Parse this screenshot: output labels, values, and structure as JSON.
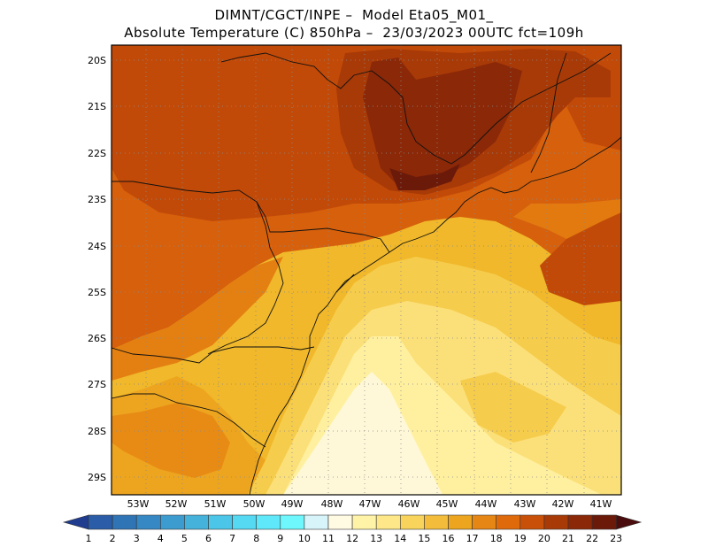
{
  "title": {
    "line1": "DIMNT/CGCT/INPE –  Model Eta05_M01_",
    "line2": "Absolute Temperature (C) 850hPa –  23/03/2023 00UTC fct=109h"
  },
  "map": {
    "variable": "Absolute Temperature",
    "units": "C",
    "level": "850hPa",
    "lat_labels": [
      "20S",
      "21S",
      "22S",
      "23S",
      "24S",
      "25S",
      "26S",
      "27S",
      "28S",
      "29S"
    ],
    "lon_labels": [
      "53W",
      "52W",
      "51W",
      "50W",
      "49W",
      "48W",
      "47W",
      "46W",
      "45W",
      "44W",
      "43W",
      "42W",
      "41W"
    ]
  },
  "colorbar": {
    "labels": [
      "1",
      "2",
      "3",
      "4",
      "5",
      "6",
      "7",
      "8",
      "9",
      "10",
      "11",
      "12",
      "13",
      "14",
      "15",
      "16",
      "17",
      "18",
      "19",
      "20",
      "21",
      "22",
      "23"
    ],
    "colors": [
      "#1f3c8f",
      "#2a5ca8",
      "#2f74b5",
      "#3588c3",
      "#3c9ccf",
      "#45b2dc",
      "#4cc6e8",
      "#55d8f2",
      "#5fe8f9",
      "#6ef7fd",
      "#d7f4fb",
      "#fffbe3",
      "#fff3a8",
      "#fde788",
      "#f8d45c",
      "#f3bd3b",
      "#eda51f",
      "#e68614",
      "#de6a0c",
      "#c95008",
      "#a83a07",
      "#8a2808",
      "#6b1a0a",
      "#4a0c0c"
    ]
  }
}
